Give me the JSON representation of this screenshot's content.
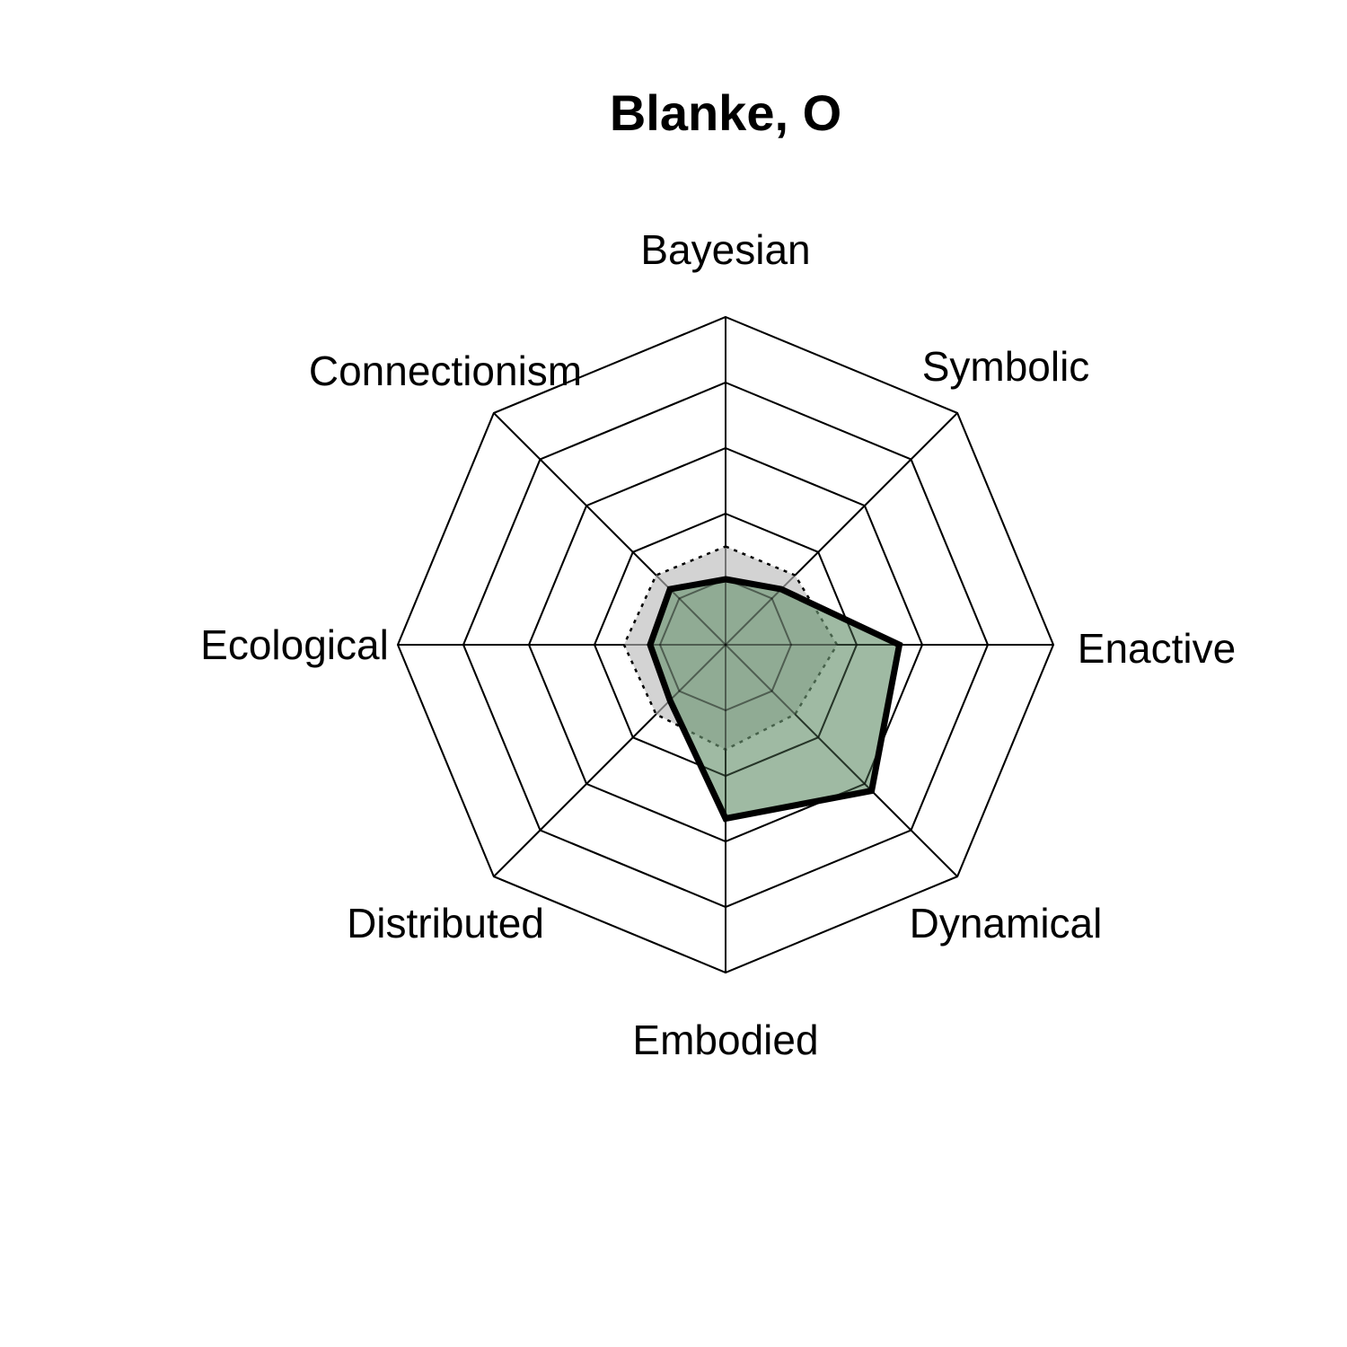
{
  "chart_data": {
    "type": "radar",
    "title": "Blanke, O",
    "axes": [
      "Bayesian",
      "Symbolic",
      "Enactive",
      "Dynamical",
      "Embodied",
      "Distributed",
      "Ecological",
      "Connectionism"
    ],
    "rings": 5,
    "range": [
      0,
      5
    ],
    "series": [
      {
        "style": "solid",
        "values": [
          1.0,
          1.2,
          2.65,
          3.15,
          2.65,
          1.2,
          1.15,
          1.2
        ],
        "fill": "#6b9572",
        "stroke": "#000000"
      },
      {
        "style": "dashed",
        "values": [
          1.5,
          1.5,
          1.7,
          1.5,
          1.6,
          1.5,
          1.55,
          1.5
        ],
        "fill": "#d3d3d3",
        "stroke": "#000000"
      }
    ],
    "grid": true
  }
}
